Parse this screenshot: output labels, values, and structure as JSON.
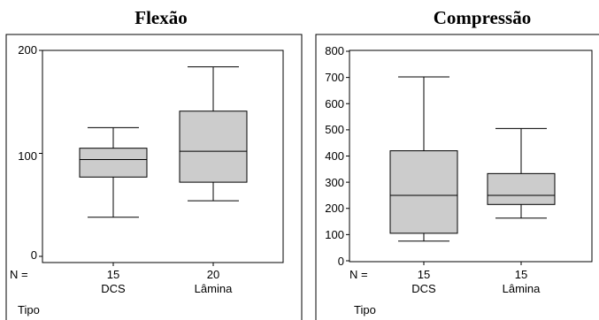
{
  "chart_data": [
    {
      "type": "boxplot",
      "title": "Flexão",
      "ylim": [
        0,
        200
      ],
      "yticks": [
        "0",
        "100",
        "200"
      ],
      "n_label": "N =",
      "xlabel": "Tipo",
      "categories": [
        "DCS",
        "Lâmina"
      ],
      "n": [
        "15",
        "20"
      ],
      "boxes": [
        {
          "min": 38,
          "q1": 77,
          "median": 94,
          "q3": 105,
          "max": 125
        },
        {
          "min": 54,
          "q1": 72,
          "median": 102,
          "q3": 141,
          "max": 184
        }
      ],
      "box_fill": "#cccccc"
    },
    {
      "type": "boxplot",
      "title": "Compressão",
      "ylim": [
        0,
        800
      ],
      "yticks": [
        "0",
        "100",
        "200",
        "300",
        "400",
        "500",
        "600",
        "700",
        "800"
      ],
      "n_label": "N =",
      "xlabel": "Tipo",
      "categories": [
        "DCS",
        "Lâmina"
      ],
      "n": [
        "15",
        "15"
      ],
      "boxes": [
        {
          "min": 75,
          "q1": 105,
          "median": 250,
          "q3": 420,
          "max": 702
        },
        {
          "min": 163,
          "q1": 215,
          "median": 250,
          "q3": 333,
          "max": 505
        }
      ],
      "box_fill": "#cccccc"
    }
  ]
}
